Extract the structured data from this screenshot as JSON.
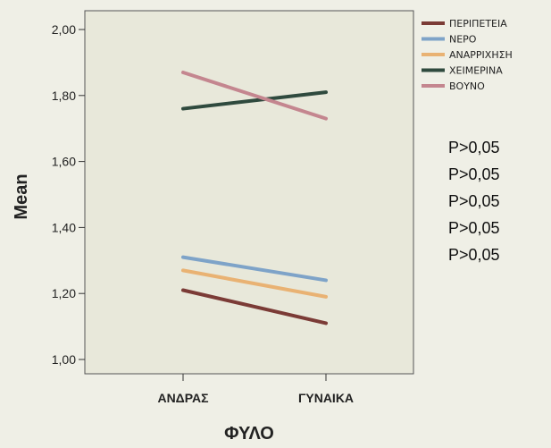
{
  "chart_data": {
    "type": "line",
    "categories": [
      "ΑΝΔΡΑΣ",
      "ΓΥΝΑΙΚΑ"
    ],
    "xlabel": "ΦΥΛΟ",
    "ylabel": "Mean",
    "ylim": [
      1.0,
      2.0
    ],
    "yticks": [
      "1,00",
      "1,20",
      "1,40",
      "1,60",
      "1,80",
      "2,00"
    ],
    "grid": false,
    "legend_position": "top-right",
    "series": [
      {
        "name": "ΠΕΡΙΠΕΤΕΙΑ",
        "color": "#7b3b36",
        "values": [
          1.21,
          1.11
        ]
      },
      {
        "name": "ΝΕΡΟ",
        "color": "#7ea3c8",
        "values": [
          1.31,
          1.24
        ]
      },
      {
        "name": "ΑΝΑΡΡΙΧΗΣΗ",
        "color": "#e9b273",
        "values": [
          1.27,
          1.19
        ]
      },
      {
        "name": "ΧΕΙΜΕΡΙΝΑ",
        "color": "#2f4a3e",
        "values": [
          1.76,
          1.81
        ]
      },
      {
        "name": "ΒΟΥΝΟ",
        "color": "#c4868f",
        "values": [
          1.87,
          1.73
        ]
      }
    ],
    "annotations": [
      "P>0,05",
      "P>0,05",
      "P>0,05",
      "P>0,05",
      "P>0,05"
    ]
  }
}
